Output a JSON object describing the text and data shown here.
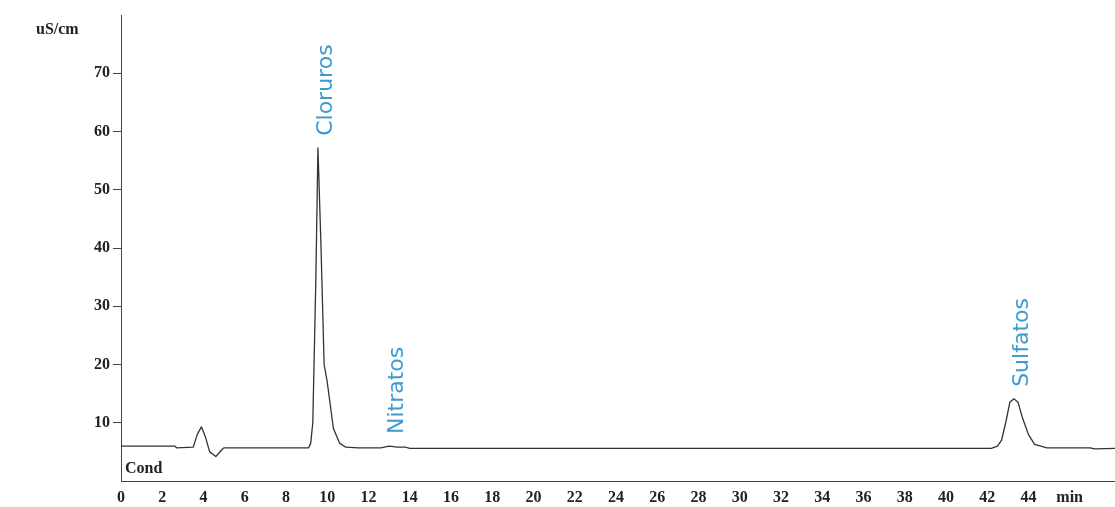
{
  "chart_data": {
    "type": "line",
    "ylabel": "uS/cm",
    "x": [
      0,
      2.6,
      2.7,
      3.5,
      3.7,
      3.9,
      4.1,
      4.3,
      4.6,
      4.9,
      5.0,
      9.1,
      9.2,
      9.3,
      9.45,
      9.55,
      9.7,
      9.85,
      10.0,
      10.15,
      10.3,
      10.6,
      10.9,
      11.5,
      12.6,
      13.0,
      13.4,
      13.8,
      14.0,
      42.2,
      42.5,
      42.7,
      42.9,
      43.1,
      43.3,
      43.5,
      43.7,
      44.0,
      44.3,
      44.9,
      47.0,
      47.2,
      48.2
    ],
    "values": [
      6.0,
      6.0,
      5.7,
      5.8,
      8.0,
      9.3,
      7.5,
      5.0,
      4.2,
      5.4,
      5.7,
      5.7,
      6.5,
      10,
      35,
      57.2,
      40,
      20,
      17,
      13,
      9,
      6.5,
      5.8,
      5.7,
      5.7,
      6.0,
      5.8,
      5.8,
      5.6,
      5.6,
      6.0,
      7.0,
      10,
      13.5,
      14.1,
      13.5,
      11,
      8,
      6.3,
      5.7,
      5.7,
      5.5,
      5.6
    ],
    "color": "#333333",
    "marker": "none",
    "line_style": "solid",
    "grid": false,
    "legend": false,
    "xlim": [
      0,
      48.2
    ],
    "ylim": [
      0,
      80
    ],
    "xticks": [
      0,
      2,
      4,
      6,
      8,
      10,
      12,
      14,
      16,
      18,
      20,
      22,
      24,
      26,
      28,
      30,
      32,
      34,
      36,
      38,
      40,
      42,
      44,
      {
        "value": 46,
        "label": "min"
      }
    ],
    "yticks": [
      10,
      20,
      30,
      40,
      50,
      60,
      70
    ],
    "annotations": [
      {
        "text": "Cloruros",
        "x": 9.55,
        "y": 57.2
      },
      {
        "text": "Nitratos",
        "x": 13.0,
        "y": 6.0
      },
      {
        "text": "Sulfatos",
        "x": 43.3,
        "y": 14.1
      },
      "Cond"
    ]
  }
}
